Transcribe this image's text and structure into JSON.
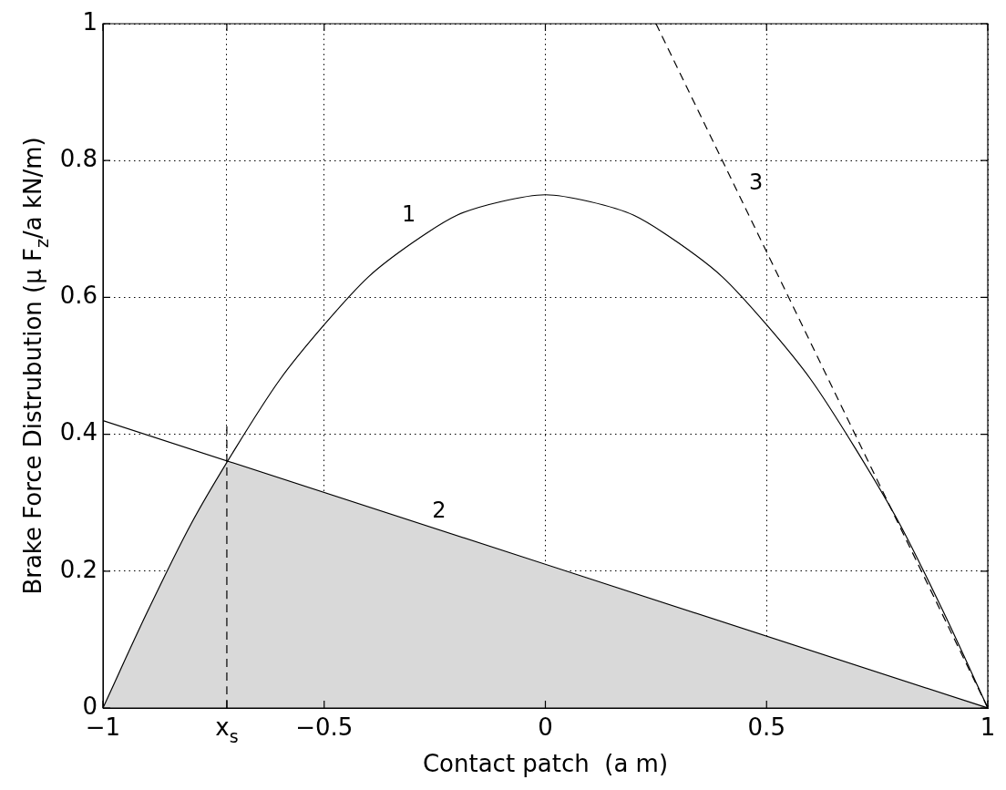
{
  "chart_data": {
    "type": "line",
    "xlabel": "Contact patch  (a m)",
    "ylabel": "Brake Force Distrubution (μ F$_{z}$/a kN/m)",
    "xlim": [
      -1,
      1
    ],
    "ylim": [
      0,
      1
    ],
    "xticks": [
      -1,
      {
        "value": -0.72,
        "label": "x$_{s}$"
      },
      -0.5,
      0,
      0.5,
      1
    ],
    "yticks": [
      0,
      0.2,
      0.4,
      0.6,
      0.8,
      1
    ],
    "grid": true,
    "marker": "none",
    "series": [
      {
        "type": "area",
        "color": "#d9d9d9",
        "x": [
          -1,
          -0.9,
          -0.8,
          -0.72,
          1
        ],
        "values": [
          0,
          0.14,
          0.27,
          0.36,
          0
        ]
      },
      {
        "name": "1",
        "color": "#000000",
        "line_style": "solid",
        "x": [
          -1,
          -0.9,
          -0.8,
          -0.7,
          -0.6,
          -0.5,
          -0.4,
          -0.3,
          -0.2,
          -0.1,
          0,
          0.1,
          0.2,
          0.3,
          0.4,
          0.5,
          0.6,
          0.7,
          0.8,
          0.9,
          1
        ],
        "values": [
          0,
          0.14,
          0.27,
          0.38,
          0.48,
          0.56,
          0.63,
          0.68,
          0.72,
          0.74,
          0.75,
          0.74,
          0.72,
          0.68,
          0.63,
          0.56,
          0.48,
          0.38,
          0.27,
          0.14,
          0
        ]
      },
      {
        "name": "2",
        "color": "#000000",
        "line_style": "solid",
        "x": [
          -1,
          1
        ],
        "values": [
          0.42,
          0
        ]
      },
      {
        "name": "3",
        "color": "#000000",
        "line_style": "dashed",
        "x": [
          0.25,
          1
        ],
        "values": [
          1,
          0
        ]
      },
      {
        "color": "#000000",
        "line_style": "dashed",
        "x": [
          -0.72,
          -0.72
        ],
        "values": [
          0,
          0.42
        ]
      }
    ]
  }
}
